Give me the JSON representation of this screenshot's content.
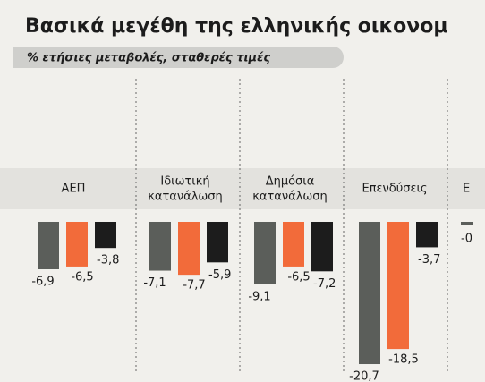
{
  "chart_data": {
    "type": "bar",
    "title": "Βασικά μεγέθη της ελληνικής οικονομ",
    "subtitle": "% ετήσιες μεταβολές, σταθερές τιμές",
    "categories": [
      "ΑΕΠ",
      "Ιδιωτική κατανάλωση",
      "Δημόσια κατανάλωση",
      "Επενδύσεις",
      "Ε"
    ],
    "series": [
      {
        "color": "#5b5e5a",
        "values": [
          -6.9,
          -7.1,
          -9.1,
          -20.7,
          -0.4
        ],
        "value_labels": [
          "-6,9",
          "-7,1",
          "-9,1",
          "-20,7",
          "-0"
        ]
      },
      {
        "color": "#f26b3a",
        "values": [
          -6.5,
          -7.7,
          -6.5,
          -18.5,
          null
        ],
        "value_labels": [
          "-6,5",
          "-7,7",
          "-6,5",
          "-18,5",
          null
        ]
      },
      {
        "color": "#1c1c1c",
        "values": [
          -3.8,
          -5.9,
          -7.2,
          -3.7,
          null
        ],
        "value_labels": [
          "-3,8",
          "-5,9",
          "-7,2",
          "-3,7",
          null
        ]
      }
    ],
    "ylim": [
      -22,
      0
    ]
  }
}
